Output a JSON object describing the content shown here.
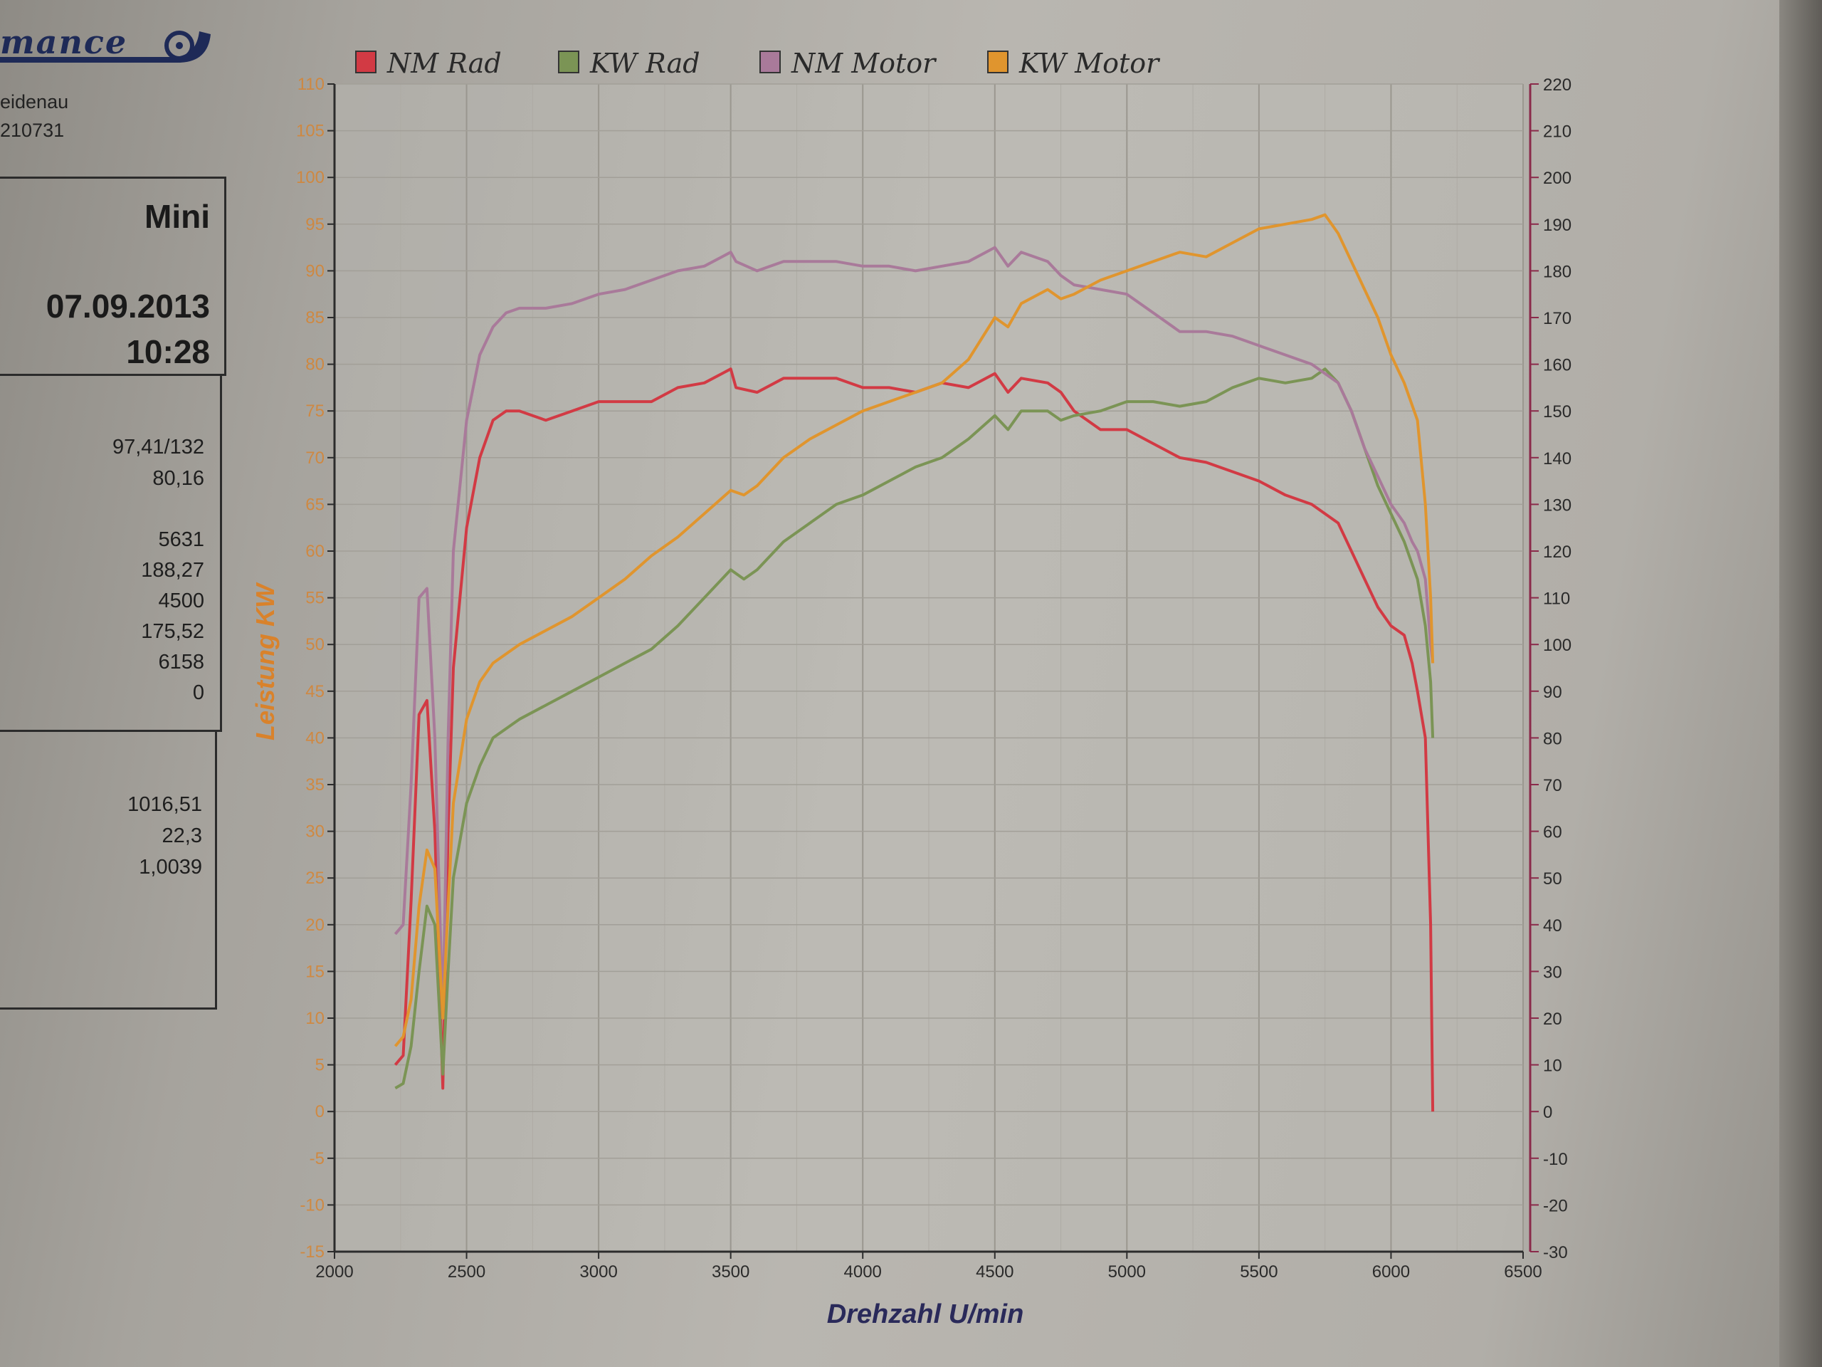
{
  "header": {
    "logo_text": "mance",
    "address_line_1": "eidenau",
    "address_line_2": "210731"
  },
  "info": {
    "vehicle": "Mini",
    "date": "07.09.2013",
    "time": "10:28",
    "values_block_1": [
      "97,41/132",
      "80,16"
    ],
    "values_block_2": [
      "5631",
      "188,27",
      "4500",
      "175,52",
      "6158",
      "0"
    ],
    "values_block_3": [
      "1016,51",
      "22,3",
      "1,0039"
    ]
  },
  "colors": {
    "nm_rad": "#d23a44",
    "kw_rad": "#7b9455",
    "nm_motor": "#a97a9a",
    "kw_motor": "#e0952e",
    "left_axis_label": "#d9822b",
    "right_axis": "#8a2a4a"
  },
  "chart_data": {
    "type": "line",
    "xlabel": "Drehzahl U/min",
    "ylabel": "Leistung KW",
    "ylabel_right": "",
    "xlim": [
      2000,
      6500
    ],
    "ylim": [
      -15,
      110
    ],
    "ylim_right": [
      -30,
      220
    ],
    "x_ticks": [
      2000,
      2500,
      3000,
      3500,
      4000,
      4500,
      5000,
      5500,
      6000,
      6500
    ],
    "y_ticks": [
      -15,
      -10,
      -5,
      0,
      5,
      10,
      15,
      20,
      25,
      30,
      35,
      40,
      45,
      50,
      55,
      60,
      65,
      70,
      75,
      80,
      85,
      90,
      95,
      100,
      105,
      110
    ],
    "y_ticks_right": [
      -30,
      -20,
      -10,
      0,
      10,
      20,
      30,
      40,
      50,
      60,
      70,
      80,
      90,
      100,
      110,
      120,
      130,
      140,
      150,
      160,
      170,
      180,
      190,
      200,
      210,
      220
    ],
    "grid": true,
    "legend_position": "top",
    "series": [
      {
        "name": "NM Rad",
        "axis": "right",
        "color_key": "nm_rad",
        "x": [
          2230,
          2260,
          2290,
          2320,
          2350,
          2380,
          2410,
          2430,
          2450,
          2500,
          2550,
          2600,
          2650,
          2700,
          2800,
          2900,
          3000,
          3100,
          3200,
          3300,
          3400,
          3500,
          3520,
          3600,
          3700,
          3800,
          3900,
          4000,
          4100,
          4200,
          4300,
          4400,
          4500,
          4550,
          4600,
          4700,
          4750,
          4800,
          4900,
          5000,
          5100,
          5200,
          5300,
          5400,
          5500,
          5600,
          5700,
          5800,
          5850,
          5900,
          5950,
          6000,
          6050,
          6080,
          6100,
          6130,
          6150,
          6158
        ],
        "y": [
          10,
          12,
          45,
          85,
          88,
          60,
          5,
          60,
          95,
          125,
          140,
          148,
          150,
          150,
          148,
          150,
          152,
          152,
          152,
          155,
          156,
          159,
          155,
          154,
          157,
          157,
          157,
          155,
          155,
          154,
          156,
          155,
          158,
          154,
          157,
          156,
          154,
          150,
          146,
          146,
          143,
          140,
          139,
          137,
          135,
          132,
          130,
          126,
          120,
          114,
          108,
          104,
          102,
          96,
          90,
          80,
          40,
          0
        ]
      },
      {
        "name": "KW Rad",
        "axis": "left",
        "color_key": "kw_rad",
        "x": [
          2230,
          2260,
          2290,
          2320,
          2350,
          2380,
          2410,
          2430,
          2450,
          2500,
          2550,
          2600,
          2700,
          2800,
          2900,
          3000,
          3100,
          3200,
          3300,
          3400,
          3500,
          3550,
          3600,
          3700,
          3800,
          3900,
          4000,
          4100,
          4200,
          4300,
          4400,
          4500,
          4550,
          4600,
          4700,
          4750,
          4800,
          4900,
          5000,
          5100,
          5200,
          5300,
          5400,
          5500,
          5600,
          5700,
          5750,
          5800,
          5850,
          5900,
          5950,
          6000,
          6050,
          6100,
          6130,
          6150,
          6158
        ],
        "y": [
          2.5,
          3,
          7,
          15,
          22,
          20,
          4,
          15,
          25,
          33,
          37,
          40,
          42,
          43.5,
          45,
          46.5,
          48,
          49.5,
          52,
          55,
          58,
          57,
          58,
          61,
          63,
          65,
          66,
          67.5,
          69,
          70,
          72,
          74.5,
          73,
          75,
          75,
          74,
          74.5,
          75,
          76,
          76,
          75.5,
          76,
          77.5,
          78.5,
          78,
          78.5,
          79.5,
          78,
          75,
          71,
          67,
          64,
          61,
          57,
          52,
          46,
          40
        ]
      },
      {
        "name": "NM Motor",
        "axis": "right",
        "color_key": "nm_motor",
        "x": [
          2230,
          2260,
          2290,
          2320,
          2350,
          2380,
          2410,
          2430,
          2450,
          2500,
          2550,
          2600,
          2650,
          2700,
          2800,
          2900,
          3000,
          3100,
          3200,
          3300,
          3400,
          3500,
          3520,
          3600,
          3700,
          3800,
          3900,
          4000,
          4100,
          4200,
          4300,
          4400,
          4500,
          4550,
          4600,
          4700,
          4750,
          4800,
          4900,
          5000,
          5100,
          5200,
          5300,
          5400,
          5500,
          5600,
          5700,
          5800,
          5850,
          5900,
          5950,
          6000,
          6050,
          6080,
          6100,
          6130,
          6150,
          6158
        ],
        "y": [
          38,
          40,
          70,
          110,
          112,
          80,
          20,
          80,
          120,
          148,
          162,
          168,
          171,
          172,
          172,
          173,
          175,
          176,
          178,
          180,
          181,
          184,
          182,
          180,
          182,
          182,
          182,
          181,
          181,
          180,
          181,
          182,
          185,
          181,
          184,
          182,
          179,
          177,
          176,
          175,
          171,
          167,
          167,
          166,
          164,
          162,
          160,
          156,
          150,
          142,
          136,
          130,
          126,
          122,
          120,
          114,
          100,
          96
        ]
      },
      {
        "name": "KW Motor",
        "axis": "left",
        "color_key": "kw_motor",
        "x": [
          2230,
          2260,
          2290,
          2320,
          2350,
          2380,
          2410,
          2430,
          2450,
          2500,
          2550,
          2600,
          2700,
          2800,
          2900,
          3000,
          3100,
          3200,
          3300,
          3400,
          3500,
          3550,
          3600,
          3700,
          3800,
          3900,
          4000,
          4100,
          4200,
          4300,
          4400,
          4500,
          4550,
          4600,
          4700,
          4750,
          4800,
          4900,
          5000,
          5100,
          5200,
          5300,
          5400,
          5500,
          5600,
          5700,
          5750,
          5800,
          5850,
          5900,
          5950,
          6000,
          6050,
          6100,
          6130,
          6150,
          6158
        ],
        "y": [
          7,
          8,
          12,
          22,
          28,
          26,
          10,
          22,
          33,
          42,
          46,
          48,
          50,
          51.5,
          53,
          55,
          57,
          59.5,
          61.5,
          64,
          66.5,
          66,
          67,
          70,
          72,
          73.5,
          75,
          76,
          77,
          78,
          80.5,
          85,
          84,
          86.5,
          88,
          87,
          87.5,
          89,
          90,
          91,
          92,
          91.5,
          93,
          94.5,
          95,
          95.5,
          96,
          94,
          91,
          88,
          85,
          81,
          78,
          74,
          65,
          55,
          48
        ]
      }
    ]
  }
}
